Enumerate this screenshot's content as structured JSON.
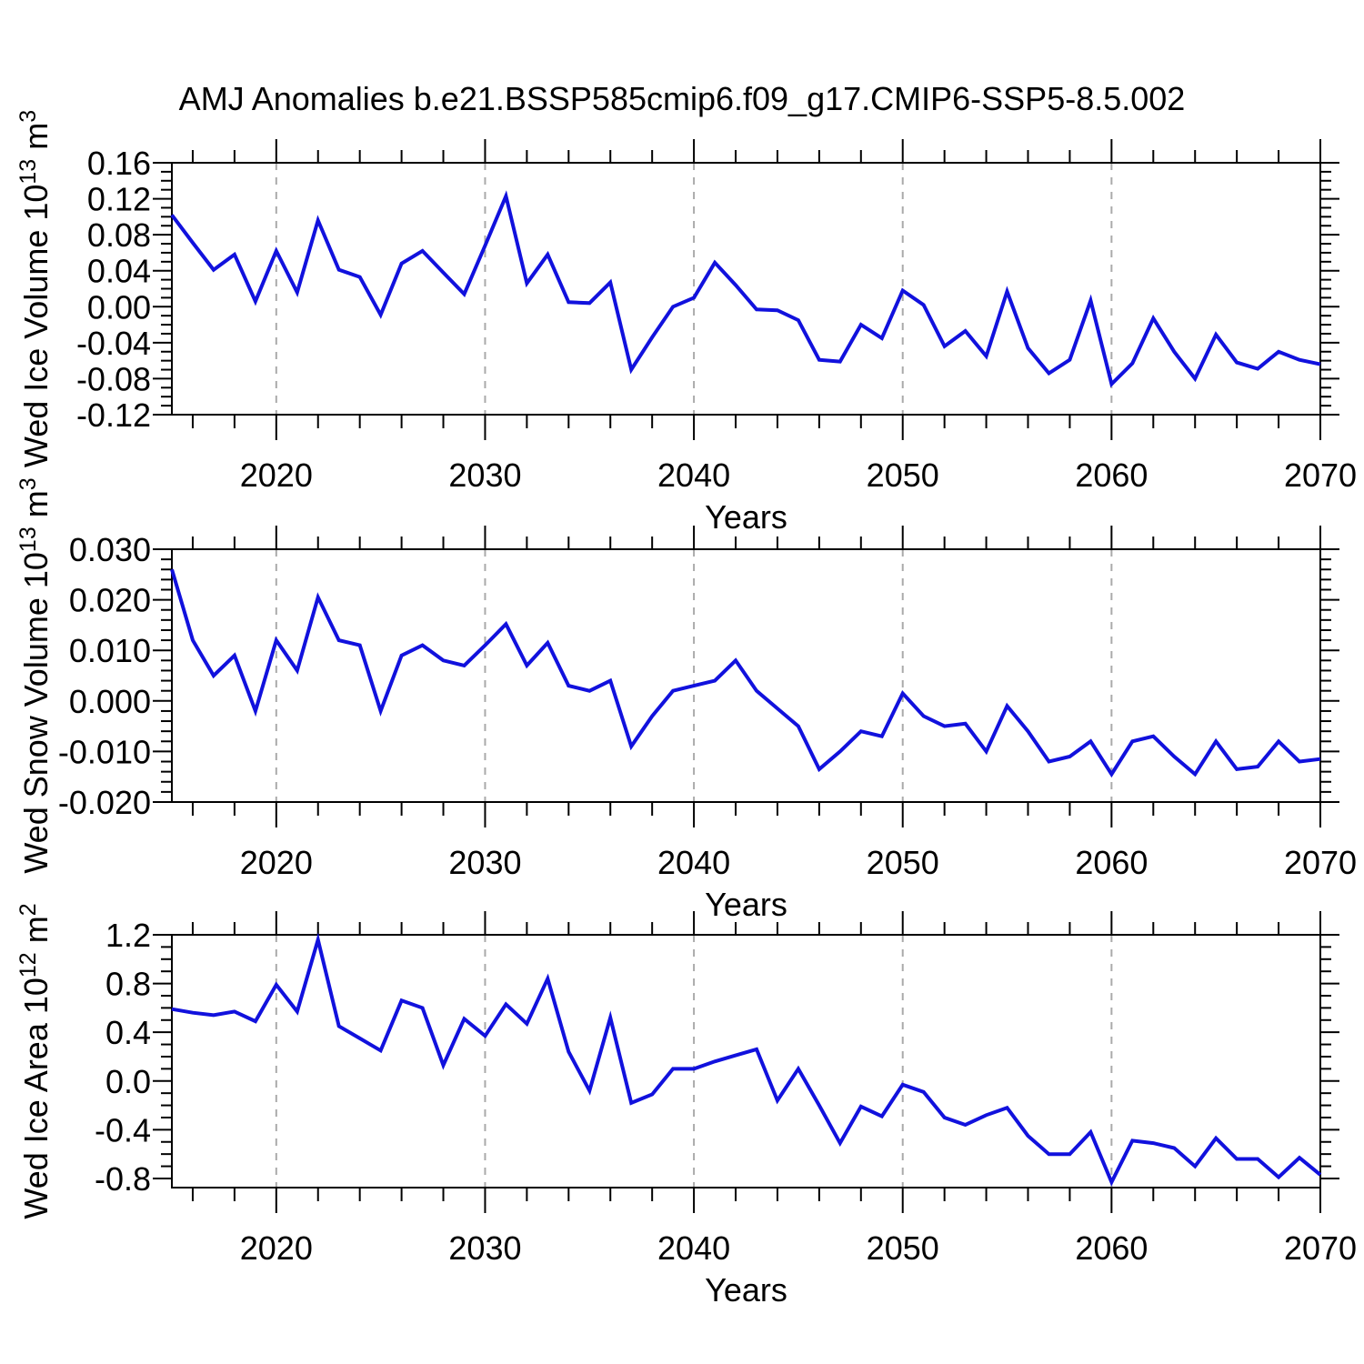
{
  "title": "AMJ Anomalies b.e21.BSSP585cmip6.f09_g17.CMIP6-SSP5-8.5.002",
  "colors": {
    "line": "#1111DD",
    "grid": "#AAAAAA",
    "axis": "#000000",
    "background": "#FFFFFF"
  },
  "x_axis": {
    "label": "Years",
    "start": 2015,
    "end": 2070,
    "major_ticks": [
      2020,
      2030,
      2040,
      2050,
      2060,
      2070
    ],
    "minor_tick_step": 2,
    "gridlines": [
      2020,
      2030,
      2040,
      2050,
      2060
    ],
    "gridline_style": "dashed"
  },
  "chart_data": [
    {
      "type": "line",
      "name": "wed-ice-volume",
      "ylabel": "Wed Ice Volume 10¹³ m³",
      "ylabel_parts": [
        {
          "t": "Wed Ice Volume 10"
        },
        {
          "t": "13",
          "sup": true
        },
        {
          "t": " m"
        },
        {
          "t": "3",
          "sup": true
        }
      ],
      "ylim": [
        -0.12,
        0.16
      ],
      "ytick_step": 0.04,
      "ytick_minor_step": 0.01,
      "ytick_decimals": 2,
      "x_range": [
        2015,
        2070
      ],
      "x_interval": 1,
      "values": [
        0.102,
        0.071,
        0.041,
        0.058,
        0.006,
        0.062,
        0.016,
        0.096,
        0.041,
        0.033,
        -0.009,
        0.048,
        0.062,
        0.038,
        0.014,
        0.068,
        0.123,
        0.026,
        0.058,
        0.005,
        0.004,
        0.027,
        -0.07,
        -0.034,
        0.0,
        0.01,
        0.049,
        0.024,
        -0.003,
        -0.004,
        -0.015,
        -0.059,
        -0.061,
        -0.02,
        -0.035,
        0.018,
        0.002,
        -0.044,
        -0.027,
        -0.055,
        0.017,
        -0.046,
        -0.074,
        -0.059,
        0.007,
        -0.086,
        -0.063,
        -0.013,
        -0.05,
        -0.08,
        -0.031,
        -0.062,
        -0.069,
        -0.05,
        -0.059,
        -0.064
      ]
    },
    {
      "type": "line",
      "name": "wed-snow-volume",
      "ylabel": "Wed Snow Volume 10¹³ m³",
      "ylabel_parts": [
        {
          "t": "Wed Snow Volume 10"
        },
        {
          "t": "13",
          "sup": true
        },
        {
          "t": " m"
        },
        {
          "t": "3",
          "sup": true
        }
      ],
      "ylim": [
        -0.02,
        0.03
      ],
      "ytick_step": 0.01,
      "ytick_minor_step": 0.002,
      "ytick_decimals": 3,
      "x_range": [
        2015,
        2070
      ],
      "x_interval": 1,
      "values": [
        0.026,
        0.012,
        0.005,
        0.009,
        -0.002,
        0.012,
        0.006,
        0.0205,
        0.012,
        0.011,
        -0.002,
        0.009,
        0.011,
        0.008,
        0.007,
        0.011,
        0.0152,
        0.007,
        0.0115,
        0.003,
        0.002,
        0.004,
        -0.009,
        -0.003,
        0.002,
        0.003,
        0.004,
        0.008,
        0.002,
        -0.0015,
        -0.005,
        -0.0135,
        -0.01,
        -0.006,
        -0.007,
        0.0015,
        -0.003,
        -0.005,
        -0.0045,
        -0.01,
        -0.001,
        -0.006,
        -0.012,
        -0.011,
        -0.008,
        -0.0145,
        -0.008,
        -0.007,
        -0.011,
        -0.0145,
        -0.008,
        -0.0135,
        -0.013,
        -0.008,
        -0.012,
        -0.0115
      ]
    },
    {
      "type": "line",
      "name": "wed-ice-area",
      "ylabel": "Wed Ice Area 10¹² m²",
      "ylabel_parts": [
        {
          "t": "Wed Ice Area 10"
        },
        {
          "t": "12",
          "sup": true
        },
        {
          "t": " m"
        },
        {
          "t": "2",
          "sup": true
        }
      ],
      "ylim": [
        -0.875,
        1.2
      ],
      "ytick_step": 0.4,
      "ytick_minor_step": 0.1,
      "ytick_decimals": 1,
      "x_range": [
        2015,
        2070
      ],
      "x_interval": 1,
      "values": [
        0.59,
        0.56,
        0.54,
        0.57,
        0.49,
        0.79,
        0.57,
        1.16,
        0.45,
        0.35,
        0.25,
        0.66,
        0.6,
        0.13,
        0.51,
        0.37,
        0.63,
        0.47,
        0.84,
        0.24,
        -0.08,
        0.52,
        -0.18,
        -0.11,
        0.1,
        0.1,
        0.16,
        0.21,
        0.26,
        -0.16,
        0.1,
        -0.2,
        -0.51,
        -0.21,
        -0.29,
        -0.03,
        -0.09,
        -0.3,
        -0.36,
        -0.28,
        -0.22,
        -0.45,
        -0.6,
        -0.6,
        -0.42,
        -0.83,
        -0.49,
        -0.51,
        -0.55,
        -0.7,
        -0.47,
        -0.64,
        -0.64,
        -0.79,
        -0.63,
        -0.77
      ]
    }
  ]
}
